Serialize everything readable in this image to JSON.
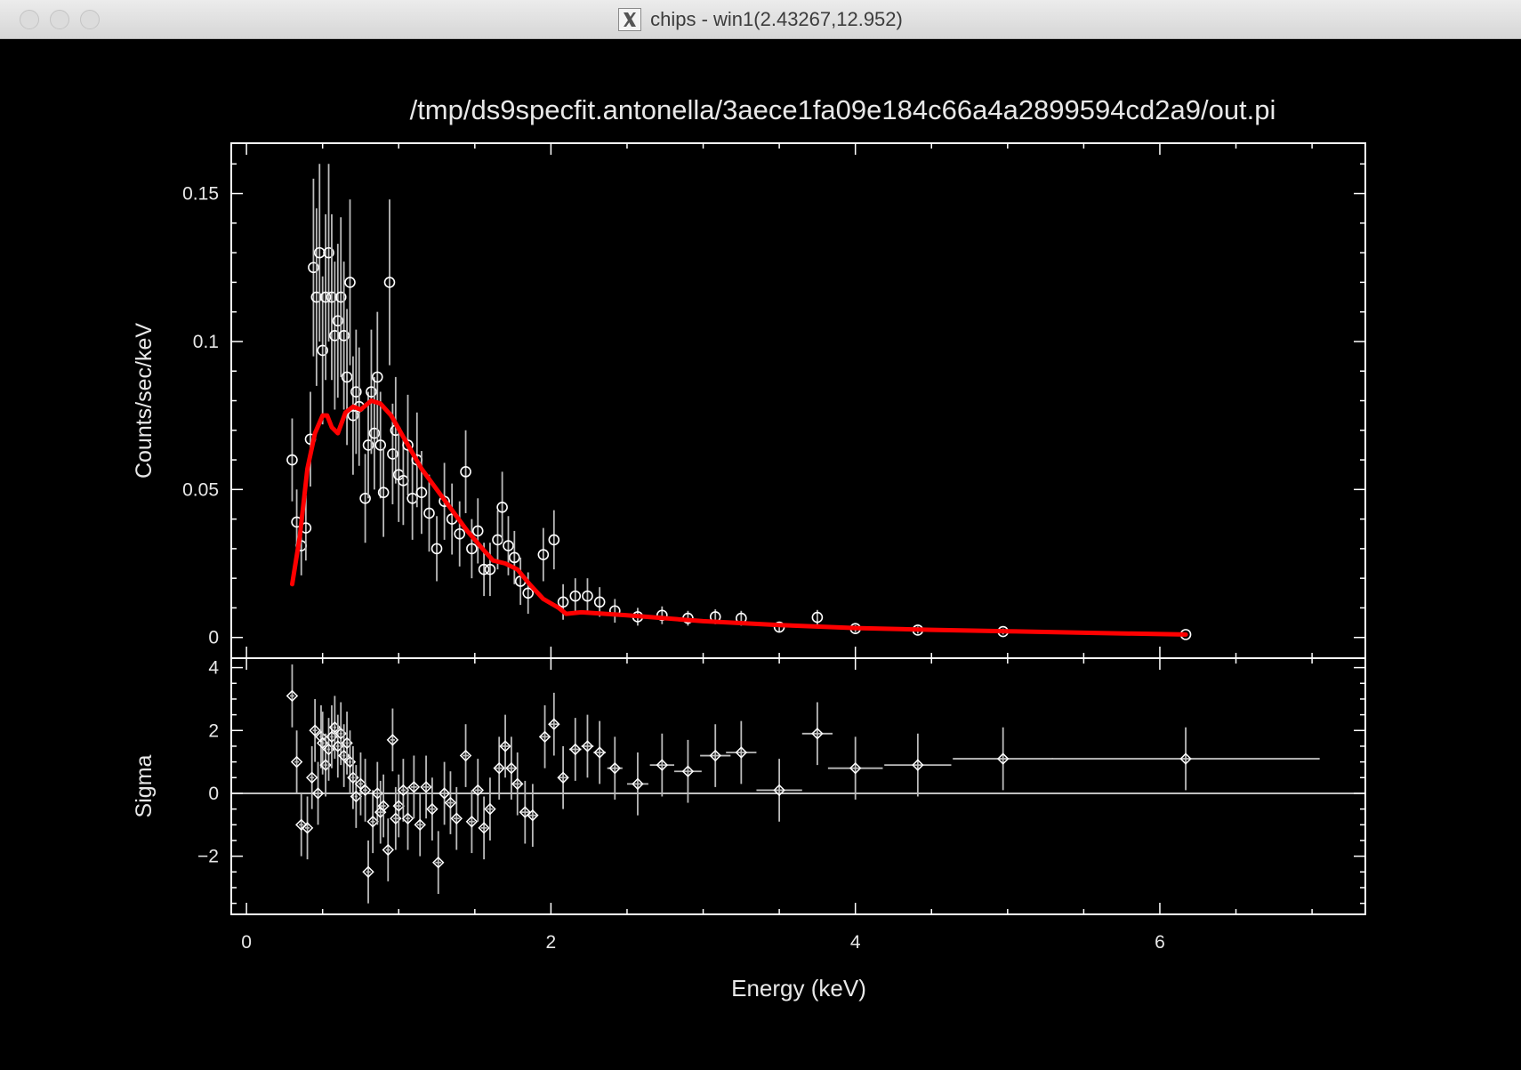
{
  "window": {
    "title": "chips - win1(2.43267,12.952)",
    "logo_icon": "x-window-icon"
  },
  "colors": {
    "background": "#000000",
    "axes": "#ffffff",
    "data": "#ffffff",
    "model": "#ff0000"
  },
  "chart_data": [
    {
      "type": "scatter",
      "title": "/tmp/ds9specfit.antonella/3aece1fa09e184c66a4a2899594cd2a9/out.pi",
      "xlabel": "",
      "ylabel": "Counts/sec/keV",
      "xlim": [
        -0.1,
        7.35
      ],
      "ylim": [
        -0.007,
        0.167
      ],
      "xticks": [
        0,
        2,
        4,
        6
      ],
      "yticks": [
        0,
        0.05,
        0.1,
        0.15
      ],
      "ytick_labels": [
        "0",
        "0.05",
        "0.1",
        "0.15"
      ],
      "series": [
        {
          "kind": "data",
          "points": [
            [
              0.3,
              0.06,
              0.014
            ],
            [
              0.33,
              0.039,
              0.011
            ],
            [
              0.36,
              0.031,
              0.01
            ],
            [
              0.39,
              0.037,
              0.011
            ],
            [
              0.42,
              0.067,
              0.016
            ],
            [
              0.44,
              0.125,
              0.03
            ],
            [
              0.46,
              0.115,
              0.03
            ],
            [
              0.48,
              0.13,
              0.03
            ],
            [
              0.5,
              0.097,
              0.025
            ],
            [
              0.52,
              0.115,
              0.028
            ],
            [
              0.54,
              0.13,
              0.03
            ],
            [
              0.56,
              0.115,
              0.028
            ],
            [
              0.58,
              0.102,
              0.025
            ],
            [
              0.6,
              0.107,
              0.026
            ],
            [
              0.62,
              0.115,
              0.027
            ],
            [
              0.64,
              0.102,
              0.025
            ],
            [
              0.66,
              0.088,
              0.023
            ],
            [
              0.68,
              0.12,
              0.028
            ],
            [
              0.7,
              0.075,
              0.02
            ],
            [
              0.72,
              0.083,
              0.021
            ],
            [
              0.74,
              0.078,
              0.02
            ],
            [
              0.78,
              0.047,
              0.015
            ],
            [
              0.8,
              0.065,
              0.018
            ],
            [
              0.82,
              0.083,
              0.021
            ],
            [
              0.84,
              0.069,
              0.019
            ],
            [
              0.86,
              0.088,
              0.022
            ],
            [
              0.88,
              0.065,
              0.018
            ],
            [
              0.9,
              0.049,
              0.015
            ],
            [
              0.94,
              0.12,
              0.028
            ],
            [
              0.96,
              0.062,
              0.017
            ],
            [
              0.98,
              0.07,
              0.018
            ],
            [
              1.0,
              0.055,
              0.016
            ],
            [
              1.03,
              0.053,
              0.015
            ],
            [
              1.06,
              0.065,
              0.017
            ],
            [
              1.09,
              0.047,
              0.014
            ],
            [
              1.12,
              0.06,
              0.016
            ],
            [
              1.15,
              0.049,
              0.014
            ],
            [
              1.2,
              0.042,
              0.013
            ],
            [
              1.25,
              0.03,
              0.011
            ],
            [
              1.3,
              0.046,
              0.013
            ],
            [
              1.35,
              0.04,
              0.012
            ],
            [
              1.4,
              0.035,
              0.011
            ],
            [
              1.44,
              0.056,
              0.014
            ],
            [
              1.48,
              0.03,
              0.01
            ],
            [
              1.52,
              0.036,
              0.011
            ],
            [
              1.56,
              0.023,
              0.009
            ],
            [
              1.6,
              0.023,
              0.009
            ],
            [
              1.65,
              0.033,
              0.01
            ],
            [
              1.68,
              0.044,
              0.012
            ],
            [
              1.72,
              0.031,
              0.01
            ],
            [
              1.76,
              0.027,
              0.009
            ],
            [
              1.8,
              0.019,
              0.008
            ],
            [
              1.85,
              0.015,
              0.007
            ],
            [
              1.95,
              0.028,
              0.009
            ],
            [
              2.02,
              0.033,
              0.01
            ],
            [
              2.08,
              0.012,
              0.006
            ],
            [
              2.16,
              0.014,
              0.006
            ],
            [
              2.24,
              0.014,
              0.006
            ],
            [
              2.32,
              0.012,
              0.005
            ],
            [
              2.42,
              0.009,
              0.004
            ],
            [
              2.57,
              0.007,
              0.003
            ],
            [
              2.73,
              0.0075,
              0.003
            ],
            [
              2.9,
              0.0065,
              0.0025
            ],
            [
              3.08,
              0.007,
              0.0025
            ],
            [
              3.25,
              0.0065,
              0.0025
            ],
            [
              3.5,
              0.0035,
              0.0015
            ],
            [
              3.75,
              0.0068,
              0.0025
            ],
            [
              4.0,
              0.003,
              0.0012
            ],
            [
              4.41,
              0.0025,
              0.0012
            ],
            [
              4.97,
              0.002,
              0.001
            ],
            [
              6.17,
              0.001,
              0.0006
            ]
          ]
        },
        {
          "kind": "model",
          "points": [
            [
              0.3,
              0.018
            ],
            [
              0.35,
              0.034
            ],
            [
              0.4,
              0.057
            ],
            [
              0.45,
              0.069
            ],
            [
              0.5,
              0.075
            ],
            [
              0.53,
              0.075
            ],
            [
              0.56,
              0.071
            ],
            [
              0.6,
              0.069
            ],
            [
              0.65,
              0.076
            ],
            [
              0.7,
              0.078
            ],
            [
              0.75,
              0.077
            ],
            [
              0.82,
              0.08
            ],
            [
              0.88,
              0.079
            ],
            [
              0.95,
              0.075
            ],
            [
              1.05,
              0.066
            ],
            [
              1.15,
              0.057
            ],
            [
              1.25,
              0.05
            ],
            [
              1.35,
              0.043
            ],
            [
              1.45,
              0.036
            ],
            [
              1.55,
              0.03
            ],
            [
              1.62,
              0.026
            ],
            [
              1.7,
              0.025
            ],
            [
              1.78,
              0.023
            ],
            [
              1.86,
              0.018
            ],
            [
              1.95,
              0.013
            ],
            [
              2.05,
              0.01
            ],
            [
              2.1,
              0.008
            ],
            [
              2.2,
              0.0085
            ],
            [
              2.5,
              0.0075
            ],
            [
              3.0,
              0.0055
            ],
            [
              3.5,
              0.0042
            ],
            [
              4.0,
              0.0032
            ],
            [
              4.5,
              0.0026
            ],
            [
              5.0,
              0.0021
            ],
            [
              5.5,
              0.0016
            ],
            [
              6.17,
              0.001
            ]
          ]
        }
      ]
    },
    {
      "type": "scatter",
      "title": "",
      "xlabel": "Energy (keV)",
      "ylabel": "Sigma",
      "xlim": [
        -0.1,
        7.35
      ],
      "ylim": [
        -3.85,
        4.3
      ],
      "xticks": [
        0,
        2,
        4,
        6
      ],
      "xtick_labels": [
        "0",
        "2",
        "4",
        "6"
      ],
      "yticks": [
        -2,
        0,
        2,
        4
      ],
      "ytick_labels": [
        "−2",
        "0",
        "2",
        "4"
      ],
      "series": [
        {
          "kind": "residuals",
          "points": [
            [
              0.3,
              3.1,
              0.015
            ],
            [
              0.33,
              1.0,
              0.015
            ],
            [
              0.36,
              -1.0,
              0.015
            ],
            [
              0.4,
              -1.1,
              0.015
            ],
            [
              0.43,
              0.5,
              0.015
            ],
            [
              0.45,
              2.0,
              0.015
            ],
            [
              0.47,
              0.0,
              0.01
            ],
            [
              0.49,
              1.8,
              0.01
            ],
            [
              0.5,
              1.6,
              0.01
            ],
            [
              0.52,
              0.9,
              0.01
            ],
            [
              0.54,
              1.4,
              0.01
            ],
            [
              0.56,
              1.8,
              0.01
            ],
            [
              0.58,
              2.1,
              0.01
            ],
            [
              0.6,
              1.5,
              0.01
            ],
            [
              0.62,
              1.9,
              0.01
            ],
            [
              0.64,
              1.2,
              0.01
            ],
            [
              0.66,
              1.6,
              0.01
            ],
            [
              0.68,
              1.0,
              0.01
            ],
            [
              0.7,
              0.5,
              0.01
            ],
            [
              0.72,
              -0.1,
              0.01
            ],
            [
              0.75,
              0.3,
              0.015
            ],
            [
              0.78,
              0.1,
              0.015
            ],
            [
              0.8,
              -2.5,
              0.015
            ],
            [
              0.83,
              -0.9,
              0.015
            ],
            [
              0.86,
              0.0,
              0.015
            ],
            [
              0.88,
              -0.6,
              0.015
            ],
            [
              0.9,
              -0.4,
              0.015
            ],
            [
              0.93,
              -1.8,
              0.015
            ],
            [
              0.96,
              1.7,
              0.015
            ],
            [
              0.98,
              -0.8,
              0.015
            ],
            [
              1.0,
              -0.4,
              0.015
            ],
            [
              1.03,
              0.1,
              0.015
            ],
            [
              1.06,
              -0.8,
              0.015
            ],
            [
              1.1,
              0.2,
              0.02
            ],
            [
              1.14,
              -1.0,
              0.02
            ],
            [
              1.18,
              0.2,
              0.02
            ],
            [
              1.22,
              -0.5,
              0.02
            ],
            [
              1.26,
              -2.2,
              0.02
            ],
            [
              1.3,
              0.0,
              0.02
            ],
            [
              1.34,
              -0.3,
              0.02
            ],
            [
              1.38,
              -0.8,
              0.02
            ],
            [
              1.44,
              1.2,
              0.02
            ],
            [
              1.48,
              -0.9,
              0.02
            ],
            [
              1.52,
              0.1,
              0.02
            ],
            [
              1.56,
              -1.1,
              0.02
            ],
            [
              1.6,
              -0.5,
              0.02
            ],
            [
              1.66,
              0.8,
              0.025
            ],
            [
              1.7,
              1.5,
              0.025
            ],
            [
              1.74,
              0.8,
              0.025
            ],
            [
              1.78,
              0.3,
              0.025
            ],
            [
              1.83,
              -0.6,
              0.025
            ],
            [
              1.88,
              -0.7,
              0.025
            ],
            [
              1.96,
              1.8,
              0.03
            ],
            [
              2.02,
              2.2,
              0.03
            ],
            [
              2.08,
              0.5,
              0.03
            ],
            [
              2.16,
              1.4,
              0.04
            ],
            [
              2.24,
              1.5,
              0.04
            ],
            [
              2.32,
              1.3,
              0.04
            ],
            [
              2.42,
              0.8,
              0.05
            ],
            [
              2.57,
              0.3,
              0.07
            ],
            [
              2.73,
              0.9,
              0.08
            ],
            [
              2.9,
              0.7,
              0.09
            ],
            [
              3.08,
              1.2,
              0.1
            ],
            [
              3.25,
              1.3,
              0.1
            ],
            [
              3.5,
              0.1,
              0.15
            ],
            [
              3.75,
              1.9,
              0.1
            ],
            [
              4.0,
              0.8,
              0.18
            ],
            [
              4.41,
              0.9,
              0.22
            ],
            [
              4.97,
              1.1,
              0.33
            ],
            [
              6.17,
              1.1,
              0.88
            ]
          ]
        }
      ]
    }
  ]
}
